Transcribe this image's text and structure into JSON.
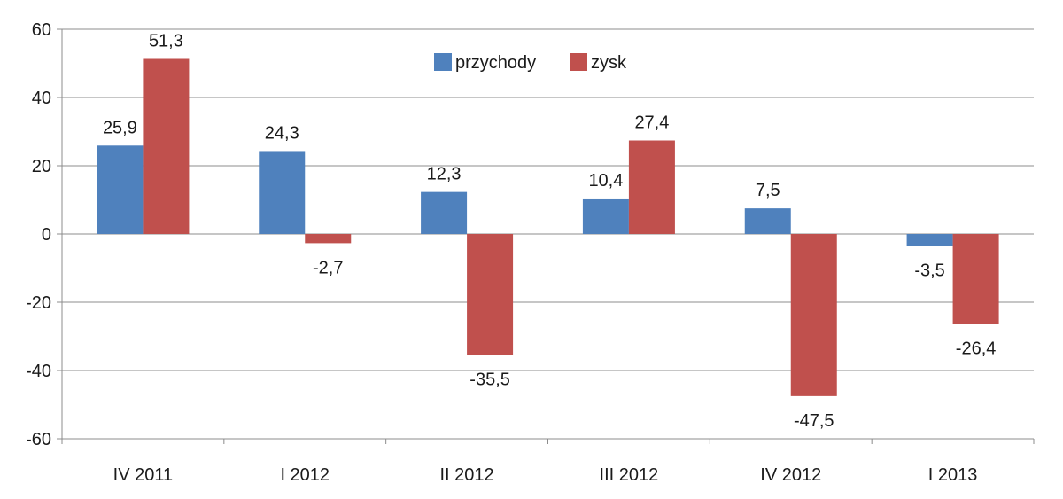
{
  "chart_data": {
    "type": "bar",
    "title": "",
    "xlabel": "",
    "ylabel": "",
    "categories": [
      "IV 2011",
      "I 2012",
      "II 2012",
      "III 2012",
      "IV 2012",
      "I 2013"
    ],
    "series": [
      {
        "name": "przychody",
        "color": "#4f81bd",
        "values": [
          25.9,
          24.3,
          12.3,
          10.4,
          7.5,
          -3.5
        ],
        "labels": [
          "25,9",
          "24,3",
          "12,3",
          "10,4",
          "7,5",
          "-3,5"
        ]
      },
      {
        "name": "zysk",
        "color": "#c0504d",
        "values": [
          51.3,
          -2.7,
          -35.5,
          27.4,
          -47.5,
          -26.4
        ],
        "labels": [
          "51,3",
          "-2,7",
          "-35,5",
          "27,4",
          "-47,5",
          "-26,4"
        ]
      }
    ],
    "ylim": [
      -60,
      60
    ],
    "yticks": [
      60,
      40,
      20,
      0,
      -20,
      -40,
      -60
    ],
    "ytick_labels": [
      "60",
      "40",
      "20",
      "0",
      "-20",
      "-40",
      "-60"
    ],
    "grid": true,
    "legend_position": "top-center"
  }
}
